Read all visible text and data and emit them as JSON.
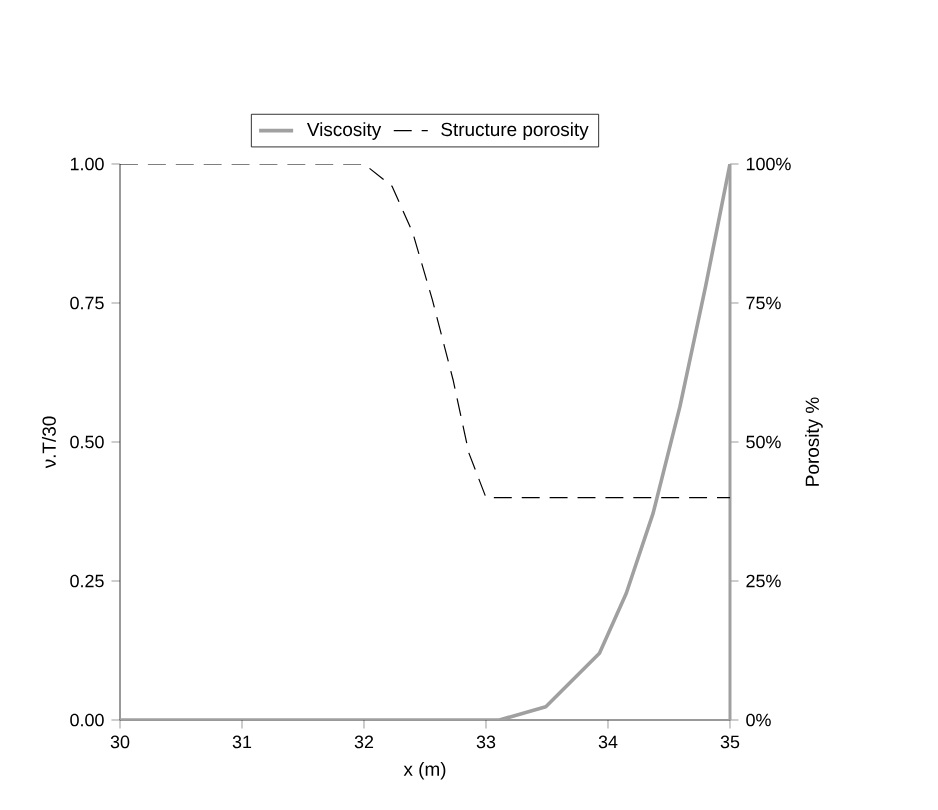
{
  "chart_data": {
    "type": "line",
    "xlabel": "x (m)",
    "ylabel": "ν.T/30",
    "y2label": "Porosity %",
    "xlim": [
      30,
      35
    ],
    "xticks": [
      30,
      31,
      32,
      33,
      34,
      35
    ],
    "ylim": [
      0,
      1
    ],
    "yticks": [
      {
        "value": 0,
        "label": "0.00"
      },
      {
        "value": 0.25,
        "label": "0.25"
      },
      {
        "value": 0.5,
        "label": "0.50"
      },
      {
        "value": 0.75,
        "label": "0.75"
      },
      {
        "value": 1,
        "label": "1.00"
      }
    ],
    "y2lim": [
      0,
      100
    ],
    "y2ticks": [
      {
        "value": 0,
        "label": "0%"
      },
      {
        "value": 25,
        "label": "25%"
      },
      {
        "value": 50,
        "label": "50%"
      },
      {
        "value": 75,
        "label": "75%"
      },
      {
        "value": 100,
        "label": "100%"
      }
    ],
    "legend": "top",
    "grid": false,
    "marker": "none",
    "series": [
      {
        "name": "Viscosity",
        "color": "#a0a0a0",
        "line_style": "solid",
        "x": [
          30,
          33.11,
          33.49,
          33.93,
          34.15,
          34.37,
          34.59,
          34.8,
          35
        ],
        "values": [
          0,
          0,
          0.024,
          0.12,
          0.228,
          0.372,
          0.564,
          0.78,
          1.0
        ]
      },
      {
        "name": "Structure porosity",
        "color": "#000000",
        "line_style": "dashed",
        "axis": "y2",
        "x": [
          30,
          32,
          32.23,
          32.4,
          32.56,
          32.73,
          32.86,
          33,
          35
        ],
        "values": [
          100,
          100,
          96,
          87.6,
          75.6,
          61.2,
          48,
          40,
          40
        ]
      }
    ]
  }
}
